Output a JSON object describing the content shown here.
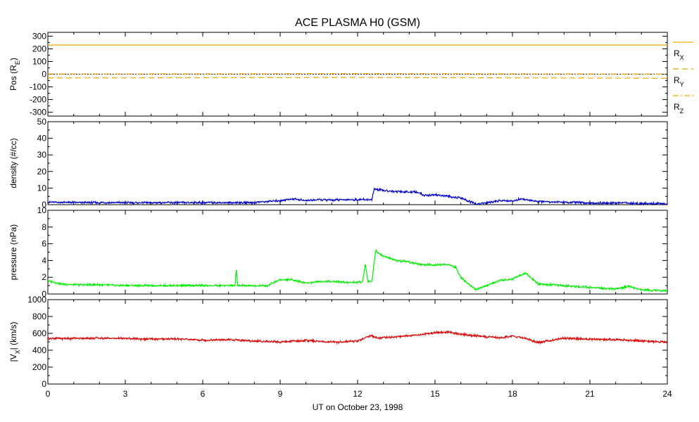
{
  "chart_data": {
    "type": "line",
    "title": "ACE PLASMA H0 (GSM)",
    "xlabel": "UT on October 23, 1998",
    "xlim": [
      0,
      24
    ],
    "xticks": [
      0,
      3,
      6,
      9,
      12,
      15,
      18,
      21,
      24
    ],
    "panels": [
      {
        "name": "pos",
        "ylabel": "Pos (R",
        "ylabel_sub": "E",
        "ylabel_tail": ")",
        "ylim": [
          -330,
          330
        ],
        "yticks": [
          -300,
          -200,
          -100,
          0,
          100,
          200,
          300
        ],
        "series": [
          {
            "name": "R",
            "sub": "X",
            "color": "#F5A800",
            "dash": "solid",
            "x": [
              0,
              24
            ],
            "values": [
              230,
              230
            ]
          },
          {
            "name": "R",
            "sub": "Y",
            "color": "#F5A800",
            "dash": "dash",
            "x": [
              0,
              6,
              12,
              18,
              24
            ],
            "values": [
              -30,
              -28,
              -26,
              -29,
              -33
            ]
          },
          {
            "name": "R",
            "sub": "Z",
            "color": "#F5A800",
            "dash": "dashdot",
            "x": [
              0,
              6,
              12,
              18,
              24
            ],
            "values": [
              2,
              3,
              5,
              3,
              1
            ]
          }
        ],
        "zero_line": true
      },
      {
        "name": "density",
        "ylabel": "density (#/cc)",
        "ylim": [
          0,
          50
        ],
        "yticks": [
          0,
          10,
          20,
          30,
          40,
          50
        ],
        "series": [
          {
            "color": "#0000CC",
            "x": [
              0,
              1,
              2,
              3,
              4,
              5,
              6,
              7,
              8,
              9,
              9.5,
              10,
              10.5,
              11,
              11.5,
              12,
              12.55,
              12.65,
              13,
              13.5,
              14,
              14.3,
              14.6,
              15,
              15.5,
              16,
              16.3,
              16.6,
              17,
              17.5,
              18,
              18.3,
              18.7,
              19,
              20,
              21,
              22,
              23,
              24
            ],
            "values": [
              1.5,
              1.3,
              1.2,
              1.2,
              1.2,
              1.2,
              1.2,
              1.2,
              1.3,
              2.5,
              3.5,
              2.5,
              3,
              2.8,
              3,
              3,
              3,
              9.5,
              8.5,
              8,
              7.5,
              7.5,
              5.5,
              6,
              5,
              4,
              2,
              0.3,
              1,
              2.5,
              2,
              3.5,
              2.5,
              2,
              1.5,
              1,
              1,
              0.8,
              0.5
            ]
          }
        ]
      },
      {
        "name": "pressure",
        "ylabel": "pressure (nPa)",
        "ylim": [
          0,
          10
        ],
        "yticks": [
          0,
          2,
          4,
          6,
          8,
          10
        ],
        "series": [
          {
            "color": "#00EE00",
            "x": [
              0,
              0.5,
              1,
              2,
              3,
              4,
              5,
              6,
              7,
              7.25,
              7.3,
              7.35,
              7.5,
              8,
              8.5,
              9,
              9.5,
              10,
              10.5,
              11,
              11.5,
              12,
              12.2,
              12.3,
              12.4,
              12.55,
              12.7,
              13,
              13.5,
              14,
              14.5,
              15,
              15.5,
              15.8,
              16,
              16.3,
              16.6,
              17,
              17.5,
              18,
              18.5,
              19,
              19.5,
              20,
              21,
              22,
              22.5,
              23,
              24
            ],
            "values": [
              1.6,
              1.2,
              1.1,
              1.1,
              1,
              1,
              1,
              1,
              1,
              1,
              2.9,
              1,
              1,
              1,
              1,
              1.7,
              1.7,
              1.3,
              1.5,
              1.5,
              1.4,
              1.4,
              1.5,
              3.7,
              1.5,
              1.5,
              5.2,
              4.5,
              4,
              3.8,
              3.5,
              3.5,
              3.5,
              3.2,
              2,
              1.2,
              0.5,
              1,
              1.6,
              1.8,
              2.5,
              1.2,
              1.1,
              1,
              0.8,
              0.6,
              0.9,
              0.5,
              0.4
            ]
          }
        ]
      },
      {
        "name": "vx",
        "ylabel": "|V",
        "ylabel_sub": "X",
        "ylabel_tail": "| (km/s)",
        "ylim": [
          0,
          1000
        ],
        "yticks": [
          0,
          200,
          400,
          600,
          800,
          1000
        ],
        "series": [
          {
            "color": "#DD0000",
            "x": [
              0,
              1,
              2,
              3,
              4,
              5,
              6,
              7,
              8,
              9,
              10,
              11,
              12,
              12.55,
              12.65,
              13,
              14,
              15,
              15.5,
              16,
              16.5,
              17,
              17.5,
              18,
              18.5,
              19,
              19.5,
              20,
              21,
              22,
              23,
              24
            ],
            "values": [
              540,
              540,
              545,
              540,
              530,
              535,
              520,
              525,
              510,
              500,
              515,
              495,
              510,
              580,
              550,
              550,
              570,
              610,
              615,
              590,
              575,
              560,
              545,
              570,
              540,
              490,
              520,
              545,
              530,
              525,
              510,
              500
            ]
          }
        ]
      }
    ]
  }
}
